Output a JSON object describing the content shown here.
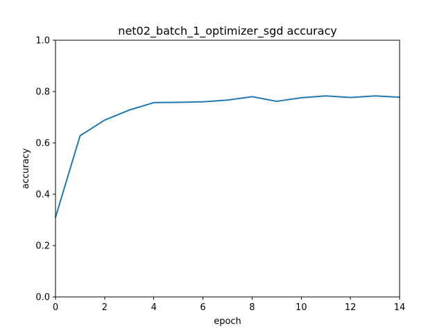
{
  "chart_data": {
    "type": "line",
    "title": "net02_batch_1_optimizer_sgd accuracy",
    "xlabel": "epoch",
    "ylabel": "accuracy",
    "xlim": [
      0,
      14
    ],
    "ylim": [
      0.0,
      1.0
    ],
    "x_ticks": [
      0,
      2,
      4,
      6,
      8,
      10,
      12,
      14
    ],
    "x_tick_labels": [
      "0",
      "2",
      "4",
      "6",
      "8",
      "10",
      "12",
      "14"
    ],
    "y_ticks": [
      0.0,
      0.2,
      0.4,
      0.6,
      0.8,
      1.0
    ],
    "y_tick_labels": [
      "0.0",
      "0.2",
      "0.4",
      "0.6",
      "0.8",
      "1.0"
    ],
    "grid": false,
    "legend": "none",
    "series": [
      {
        "color": "#1f77b4",
        "x": [
          0,
          1,
          2,
          3,
          4,
          5,
          6,
          7,
          8,
          9,
          10,
          11,
          12,
          13,
          14
        ],
        "y": [
          0.31,
          0.628,
          0.689,
          0.728,
          0.757,
          0.758,
          0.76,
          0.767,
          0.78,
          0.762,
          0.776,
          0.783,
          0.777,
          0.783,
          0.778
        ]
      }
    ]
  }
}
